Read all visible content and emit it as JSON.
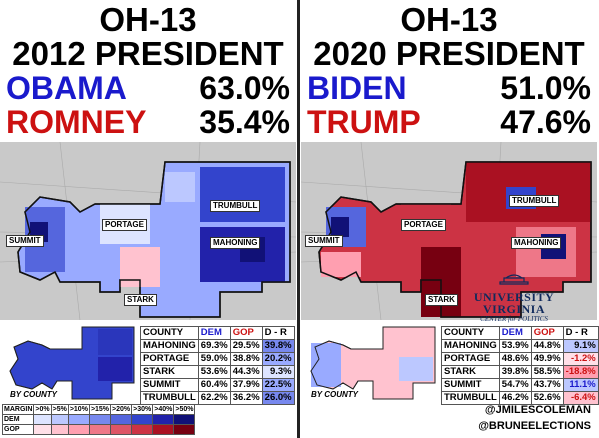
{
  "left": {
    "district": "OH-13",
    "race": "2012 PRESIDENT",
    "dem_name": "OBAMA",
    "dem_pct": "63.0%",
    "gop_name": "ROMNEY",
    "gop_pct": "35.4%",
    "labels": [
      "TRUMBULL",
      "PORTAGE",
      "SUMMIT",
      "MAHONING",
      "STARK"
    ],
    "by_county": "BY COUNTY",
    "table": {
      "headers": [
        "COUNTY",
        "DEM",
        "GOP",
        "D - R"
      ],
      "rows": [
        [
          "MAHONING",
          "69.3%",
          "29.5%",
          "39.8%"
        ],
        [
          "PORTAGE",
          "59.0%",
          "38.8%",
          "20.2%"
        ],
        [
          "STARK",
          "53.6%",
          "44.3%",
          "9.3%"
        ],
        [
          "SUMMIT",
          "60.4%",
          "37.9%",
          "22.5%"
        ],
        [
          "TRUMBULL",
          "62.2%",
          "36.2%",
          "26.0%"
        ]
      ]
    },
    "legend": {
      "margin_label": "MARGIN",
      "bins": [
        ">0%",
        ">5%",
        ">10%",
        ">15%",
        ">20%",
        ">30%",
        ">40%",
        ">50%"
      ],
      "dem_label": "DEM",
      "gop_label": "GOP",
      "dem_colors": [
        "#dde4ff",
        "#bcc8ff",
        "#99aaff",
        "#7788ee",
        "#5566dd",
        "#3344cc",
        "#2222aa",
        "#111177"
      ],
      "gop_colors": [
        "#ffe0e8",
        "#ffc2cf",
        "#ff9fb0",
        "#ee7788",
        "#dd5566",
        "#cc3344",
        "#aa1122",
        "#770011"
      ]
    }
  },
  "right": {
    "district": "OH-13",
    "race": "2020 PRESIDENT",
    "dem_name": "BIDEN",
    "dem_pct": "51.0%",
    "gop_name": "TRUMP",
    "gop_pct": "47.6%",
    "labels": [
      "TRUMBULL",
      "PORTAGE",
      "SUMMIT",
      "MAHONING",
      "STARK"
    ],
    "by_county": "BY COUNTY",
    "logo_line1": "UNIVERSITY",
    "logo_line2": "VIRGINIA",
    "logo_line3": "CENTER for POLITICS",
    "table": {
      "headers": [
        "COUNTY",
        "DEM",
        "GOP",
        "D - R"
      ],
      "rows": [
        [
          "MAHONING",
          "53.9%",
          "44.8%",
          "9.1%"
        ],
        [
          "PORTAGE",
          "48.6%",
          "49.9%",
          "-1.2%"
        ],
        [
          "STARK",
          "39.8%",
          "58.5%",
          "-18.8%"
        ],
        [
          "SUMMIT",
          "54.7%",
          "43.7%",
          "11.1%"
        ],
        [
          "TRUMBULL",
          "46.2%",
          "52.6%",
          "-6.4%"
        ]
      ]
    },
    "handle1": "@JMILESCOLEMAN",
    "handle2": "@BRUNEELECTIONS"
  },
  "colors": {
    "dem": "#1a1acc",
    "gop": "#cc1111"
  }
}
